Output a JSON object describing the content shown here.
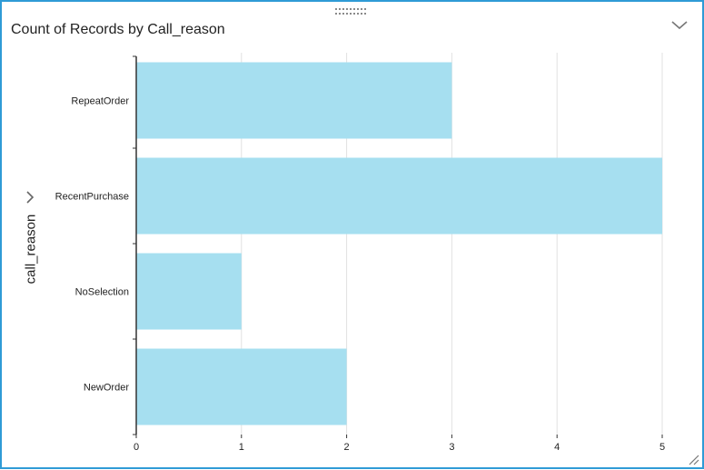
{
  "visual": {
    "title": "Count of Records by Call_reason",
    "icons": {
      "drag": "drag-handle-icon",
      "collapse": "chevron-down-icon",
      "axis_expand": "chevron-right-icon",
      "resize": "resize-corner-icon"
    }
  },
  "colors": {
    "bar": "#a6dff0",
    "border": "#2f9bd6",
    "grid": "#e2e2e2",
    "axis": "#333333"
  },
  "chart_data": {
    "type": "bar",
    "orientation": "horizontal",
    "title": "Count of Records by Call_reason",
    "ylabel": "call_reason",
    "xlabel": "",
    "categories": [
      "RepeatOrder",
      "RecentPurchase",
      "NoSelection",
      "NewOrder"
    ],
    "values": [
      3,
      5,
      1,
      2
    ],
    "xlim": [
      0,
      5
    ],
    "x_ticks": [
      0,
      1,
      2,
      3,
      4,
      5
    ],
    "grid": true,
    "legend": "none"
  }
}
